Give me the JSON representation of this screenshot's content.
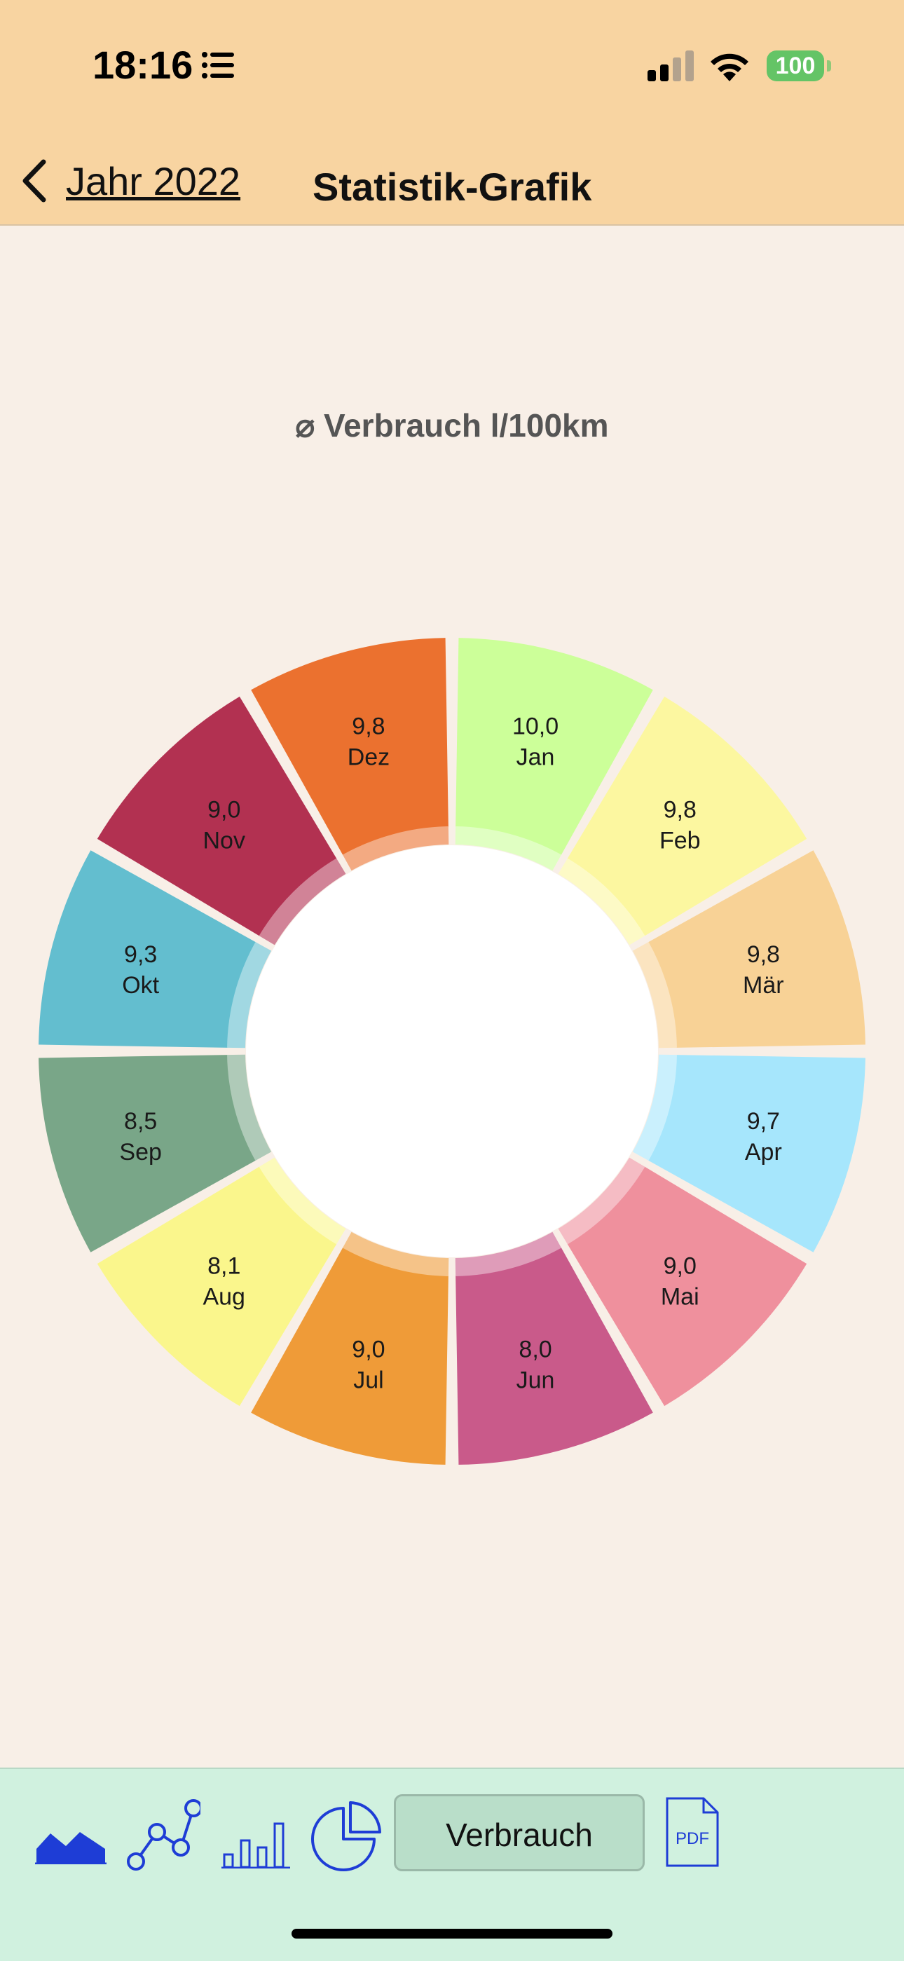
{
  "status": {
    "time": "18:16",
    "battery": "100"
  },
  "nav": {
    "back_label": "Jahr 2022",
    "title": "Statistik-Grafik"
  },
  "chart_data": {
    "type": "pie",
    "title": "⌀ Verbrauch l/100km",
    "categories": [
      "Jan",
      "Feb",
      "Mär",
      "Apr",
      "Mai",
      "Jun",
      "Jul",
      "Aug",
      "Sep",
      "Okt",
      "Nov",
      "Dez"
    ],
    "values": [
      10.0,
      9.8,
      9.8,
      9.7,
      9.0,
      8.0,
      9.0,
      8.1,
      8.5,
      9.3,
      9.0,
      9.8
    ],
    "value_labels": [
      "10,0",
      "9,8",
      "9,8",
      "9,7",
      "9,0",
      "8,0",
      "9,0",
      "8,1",
      "8,5",
      "9,3",
      "9,0",
      "9,8"
    ],
    "colors": [
      "#CCFF99",
      "#FCF7A0",
      "#F8D296",
      "#A6E6FC",
      "#EF909D",
      "#C95A8A",
      "#EF9B38",
      "#FAF68C",
      "#79A688",
      "#63BECF",
      "#B23151",
      "#EB712F"
    ]
  },
  "toolbar": {
    "icons": [
      "area-chart-icon",
      "line-chart-icon",
      "bar-chart-icon",
      "pie-chart-icon",
      "pdf-icon"
    ],
    "metric_label": "Verbrauch",
    "pdf_label": "PDF"
  }
}
